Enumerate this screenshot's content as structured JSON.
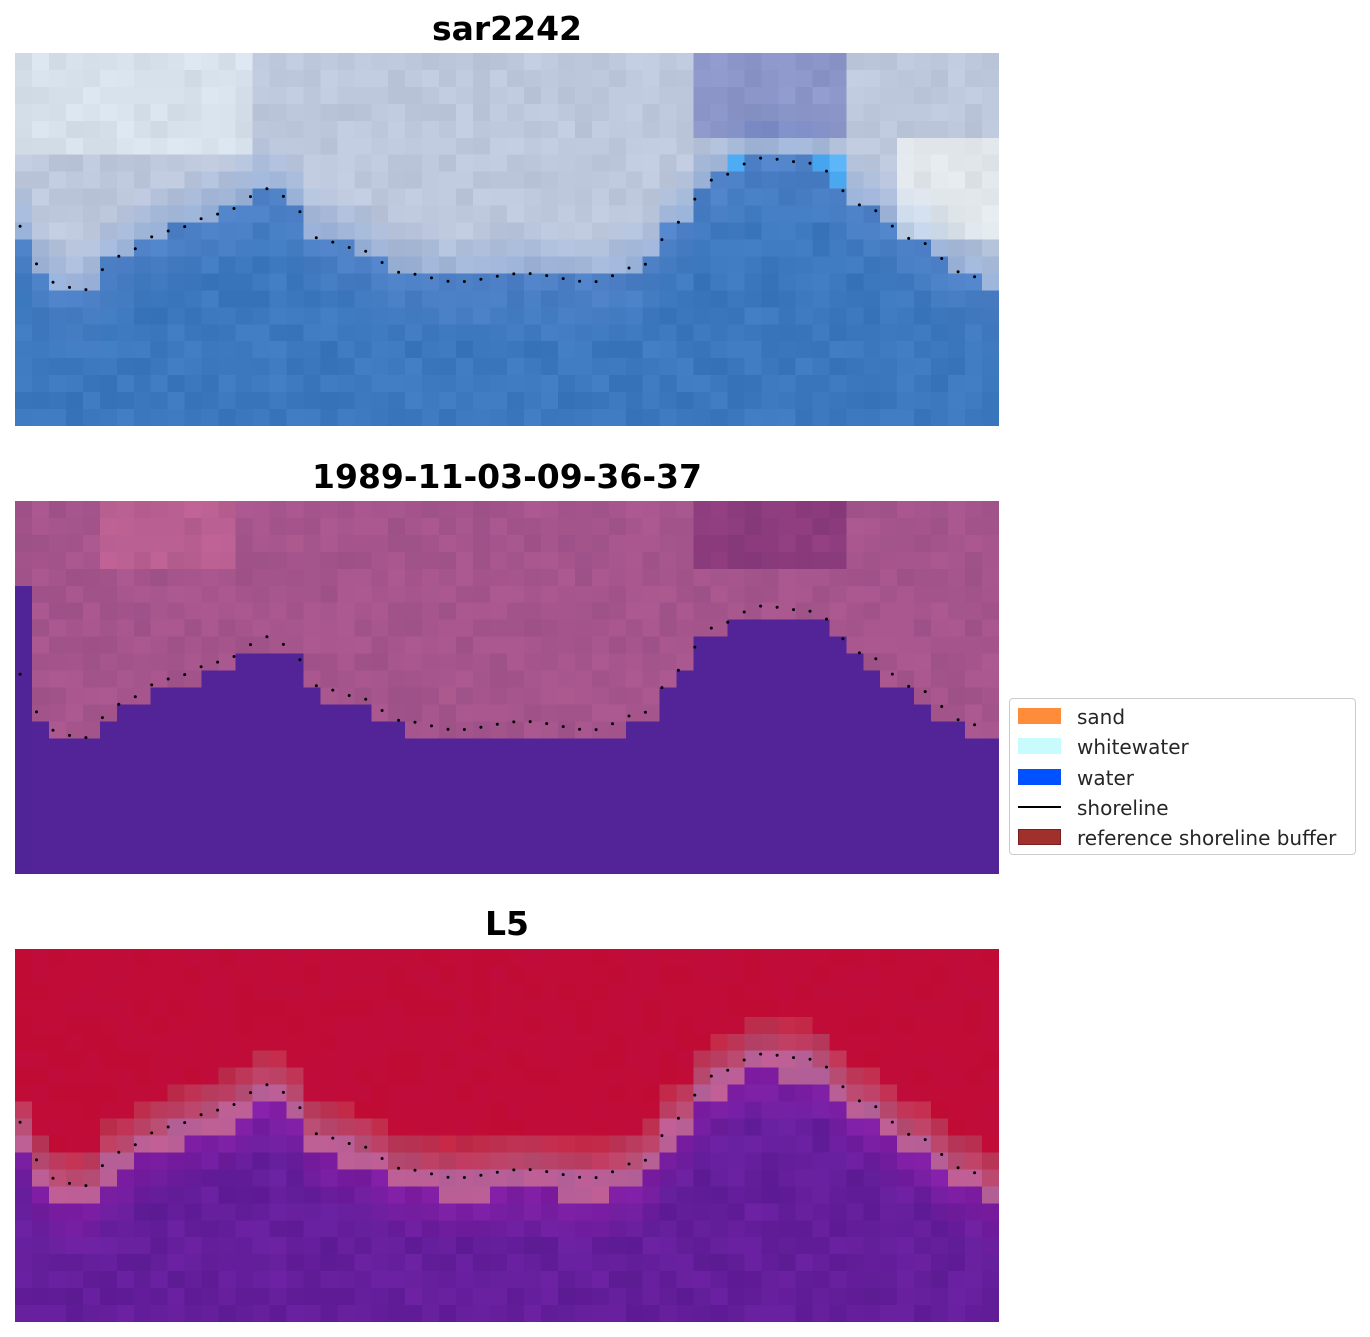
{
  "panels": [
    {
      "title": "sar2242",
      "style": "rgb"
    },
    {
      "title": "1989-11-03-09-36-37",
      "style": "classified"
    },
    {
      "title": "L5",
      "style": "index"
    }
  ],
  "legend": {
    "items": [
      {
        "label": "sand",
        "kind": "patch",
        "color": "#ff8c3a"
      },
      {
        "label": "whitewater",
        "kind": "patch",
        "color": "#c8fcfc"
      },
      {
        "label": "water",
        "kind": "patch",
        "color": "#0051ff"
      },
      {
        "label": "shoreline",
        "kind": "line",
        "color": "#000000"
      },
      {
        "label": "reference shoreline buffer",
        "kind": "patch",
        "color": "#a0302c",
        "edge": "#7a1f1c"
      }
    ]
  }
}
